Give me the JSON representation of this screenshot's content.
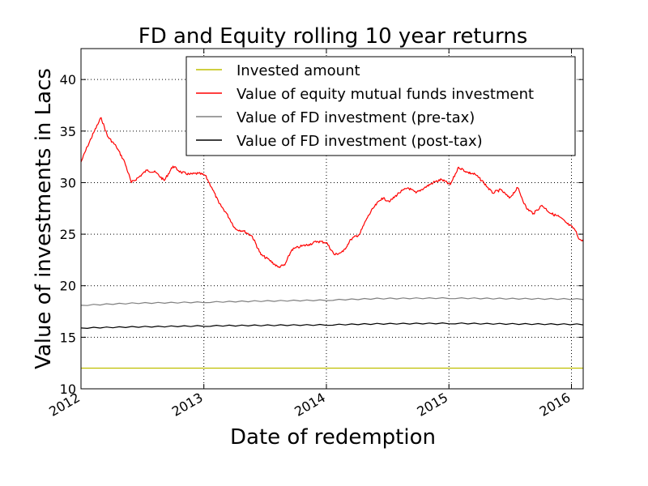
{
  "chart_data": {
    "type": "line",
    "title": "FD and Equity rolling 10 year returns",
    "xlabel": "Date of redemption",
    "ylabel": "Value of investments in Lacs",
    "xlim": [
      "2012-01-01",
      "2016-02-05"
    ],
    "ylim": [
      10,
      43
    ],
    "x_ticks": [
      "2012",
      "2013",
      "2014",
      "2015",
      "2016"
    ],
    "y_ticks": [
      10,
      15,
      20,
      25,
      30,
      35,
      40
    ],
    "grid": true,
    "legend_position": "top-right",
    "series": [
      {
        "name": "Invested amount",
        "color": "#bfbf00",
        "style": "flat",
        "points": [
          [
            "2012-01-01",
            12.0
          ],
          [
            "2016-02-05",
            12.0
          ]
        ]
      },
      {
        "name": "Value of equity mutual funds investment",
        "color": "#ff0000",
        "style": "noisy",
        "points": [
          [
            "2012-01-01",
            32.0
          ],
          [
            "2012-01-20",
            33.5
          ],
          [
            "2012-02-10",
            35.0
          ],
          [
            "2012-03-01",
            36.3
          ],
          [
            "2012-03-20",
            34.5
          ],
          [
            "2012-04-15",
            33.5
          ],
          [
            "2012-05-10",
            32.0
          ],
          [
            "2012-05-30",
            30.0
          ],
          [
            "2012-06-20",
            30.5
          ],
          [
            "2012-07-15",
            31.2
          ],
          [
            "2012-08-10",
            31.0
          ],
          [
            "2012-09-05",
            30.2
          ],
          [
            "2012-10-01",
            31.6
          ],
          [
            "2012-10-25",
            31.0
          ],
          [
            "2012-11-20",
            30.8
          ],
          [
            "2012-12-15",
            30.9
          ],
          [
            "2013-01-05",
            30.7
          ],
          [
            "2013-01-25",
            29.5
          ],
          [
            "2013-02-15",
            28.0
          ],
          [
            "2013-03-10",
            27.0
          ],
          [
            "2013-04-05",
            25.5
          ],
          [
            "2013-04-30",
            25.3
          ],
          [
            "2013-05-25",
            24.8
          ],
          [
            "2013-06-20",
            23.0
          ],
          [
            "2013-07-15",
            22.5
          ],
          [
            "2013-08-10",
            21.8
          ],
          [
            "2013-08-30",
            22.0
          ],
          [
            "2013-09-20",
            23.5
          ],
          [
            "2013-10-15",
            23.8
          ],
          [
            "2013-11-10",
            24.0
          ],
          [
            "2013-12-05",
            24.3
          ],
          [
            "2014-01-01",
            24.2
          ],
          [
            "2014-01-25",
            23.0
          ],
          [
            "2014-02-20",
            23.3
          ],
          [
            "2014-03-15",
            24.5
          ],
          [
            "2014-04-10",
            25.0
          ],
          [
            "2014-05-01",
            26.5
          ],
          [
            "2014-05-20",
            27.5
          ],
          [
            "2014-06-15",
            28.5
          ],
          [
            "2014-07-10",
            28.2
          ],
          [
            "2014-08-05",
            29.0
          ],
          [
            "2014-09-01",
            29.5
          ],
          [
            "2014-09-25",
            29.0
          ],
          [
            "2014-10-20",
            29.5
          ],
          [
            "2014-11-15",
            30.0
          ],
          [
            "2014-12-10",
            30.3
          ],
          [
            "2015-01-05",
            29.8
          ],
          [
            "2015-01-30",
            31.5
          ],
          [
            "2015-02-25",
            31.0
          ],
          [
            "2015-03-20",
            30.8
          ],
          [
            "2015-04-15",
            30.0
          ],
          [
            "2015-05-10",
            29.0
          ],
          [
            "2015-06-05",
            29.3
          ],
          [
            "2015-06-30",
            28.5
          ],
          [
            "2015-07-25",
            29.5
          ],
          [
            "2015-08-20",
            27.5
          ],
          [
            "2015-09-10",
            27.0
          ],
          [
            "2015-10-05",
            27.8
          ],
          [
            "2015-11-01",
            27.0
          ],
          [
            "2015-11-25",
            26.7
          ],
          [
            "2015-12-20",
            26.0
          ],
          [
            "2016-01-10",
            25.5
          ],
          [
            "2016-01-25",
            24.5
          ],
          [
            "2016-02-05",
            24.3
          ]
        ]
      },
      {
        "name": "Value of FD investment (pre-tax)",
        "color": "#808080",
        "style": "stepped",
        "points": [
          [
            "2012-01-01",
            18.1
          ],
          [
            "2012-06-01",
            18.3
          ],
          [
            "2013-01-01",
            18.4
          ],
          [
            "2013-06-01",
            18.5
          ],
          [
            "2014-01-01",
            18.6
          ],
          [
            "2014-06-01",
            18.75
          ],
          [
            "2015-01-01",
            18.8
          ],
          [
            "2015-06-01",
            18.75
          ],
          [
            "2016-02-05",
            18.7
          ]
        ]
      },
      {
        "name": "Value of FD investment (post-tax)",
        "color": "#000000",
        "style": "stepped",
        "points": [
          [
            "2012-01-01",
            15.9
          ],
          [
            "2012-06-01",
            16.0
          ],
          [
            "2013-01-01",
            16.1
          ],
          [
            "2013-06-01",
            16.15
          ],
          [
            "2014-01-01",
            16.2
          ],
          [
            "2014-06-01",
            16.3
          ],
          [
            "2015-01-01",
            16.35
          ],
          [
            "2015-06-01",
            16.3
          ],
          [
            "2016-02-05",
            16.25
          ]
        ]
      }
    ]
  }
}
